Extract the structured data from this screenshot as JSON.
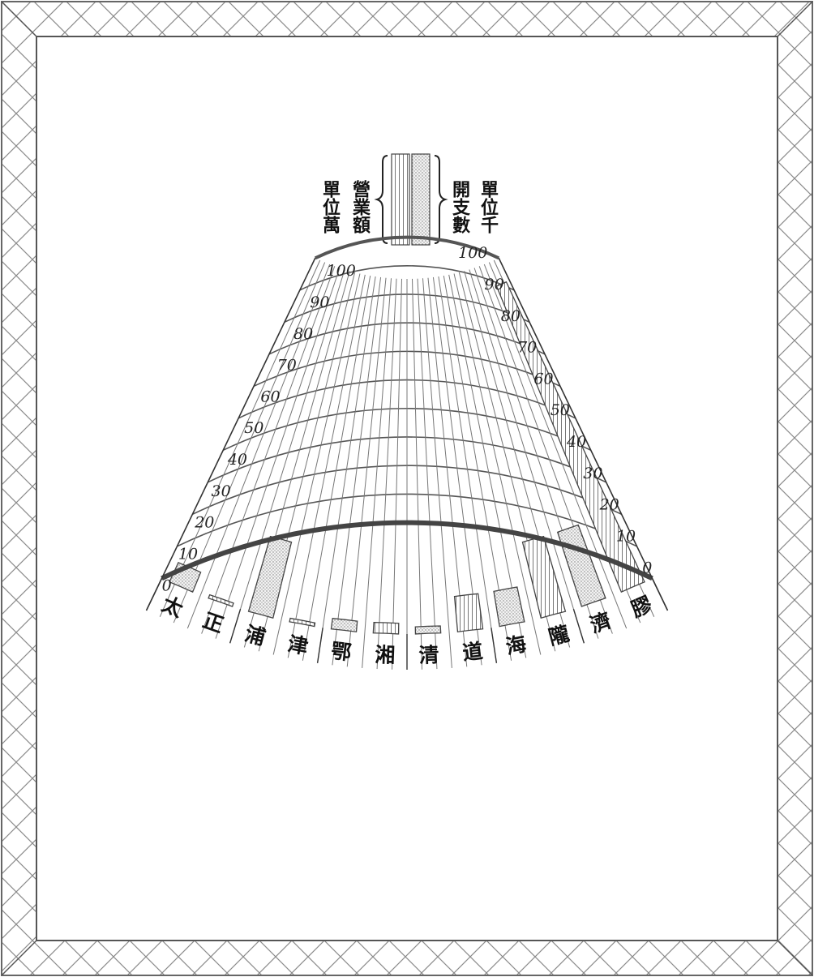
{
  "chart_data": {
    "type": "bar",
    "legend": {
      "left_text": [
        "營業",
        "單位萬",
        "額"
      ],
      "left_cols": [
        "單位萬",
        "營業額"
      ],
      "right_cols": [
        "開支數",
        "單位千"
      ]
    },
    "left_axis_ticks": [
      "0",
      "10",
      "20",
      "30",
      "40",
      "50",
      "60",
      "70",
      "80",
      "90",
      "100"
    ],
    "right_axis_ticks": [
      "0",
      "10",
      "20",
      "30",
      "40",
      "50",
      "60",
      "70",
      "80",
      "90",
      "100"
    ],
    "ylim": [
      0,
      100
    ],
    "lines": [
      {
        "name": "膠濟",
        "categories": [
          "膠",
          "濟"
        ]
      },
      {
        "name": "隴海",
        "categories": [
          "隴",
          "海"
        ]
      },
      {
        "name": "道清",
        "categories": [
          "道",
          "清"
        ]
      },
      {
        "name": "湘鄂",
        "categories": [
          "湘",
          "鄂"
        ]
      },
      {
        "name": "津浦",
        "categories": [
          "津",
          "浦"
        ]
      },
      {
        "name": "正太",
        "categories": [
          "正",
          "太"
        ]
      }
    ],
    "series": [
      {
        "key": "revenue",
        "values": [
          93,
          22,
          10,
          3,
          1,
          1
        ]
      },
      {
        "key": "expenditure",
        "values": [
          22,
          10,
          2,
          3,
          22,
          6
        ]
      }
    ],
    "grid": true,
    "colors": {
      "frame": "#7a7a7a",
      "grid": "#555555",
      "axis": "#333333",
      "hatch": "#888888"
    }
  }
}
